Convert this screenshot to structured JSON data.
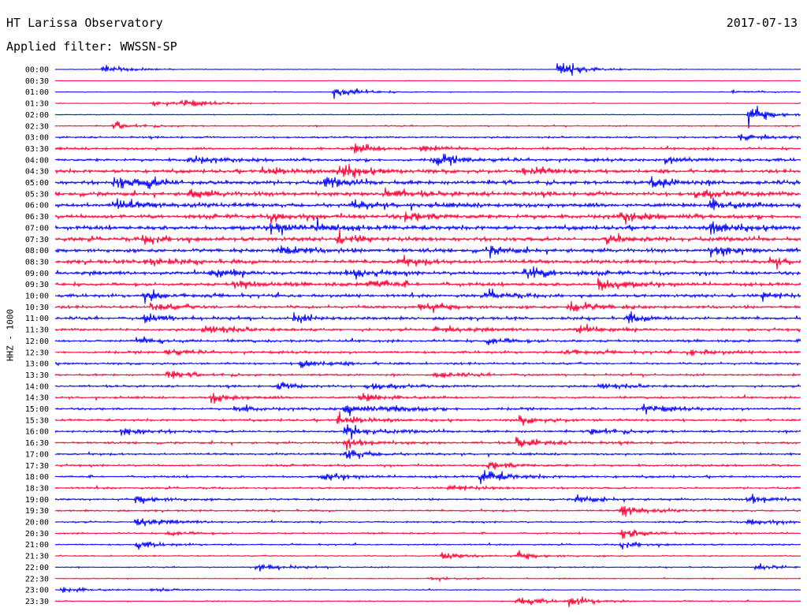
{
  "header": {
    "station": "HT Larissa Observatory",
    "date": "2017-07-13",
    "filter": "Applied filter: WWSSN-SP"
  },
  "channel_label": "HHZ - 1000",
  "colors": {
    "blue": "#0000ff",
    "red": "#ff0033"
  },
  "chart_data": {
    "type": "line",
    "title": "HT Larissa Observatory",
    "subtitle": "Applied filter: WWSSN-SP",
    "date": "2017-07-13",
    "ylabel": "HHZ - 1000",
    "row_labels": [
      "00:00",
      "00:30",
      "01:00",
      "01:30",
      "02:00",
      "02:30",
      "03:00",
      "03:30",
      "04:00",
      "04:30",
      "05:00",
      "05:30",
      "06:00",
      "06:30",
      "07:00",
      "07:30",
      "08:00",
      "08:30",
      "09:00",
      "09:30",
      "10:00",
      "10:30",
      "11:00",
      "11:30",
      "12:00",
      "12:30",
      "13:00",
      "13:30",
      "14:00",
      "14:30",
      "15:00",
      "15:30",
      "16:00",
      "16:30",
      "17:00",
      "17:30",
      "18:00",
      "18:30",
      "19:00",
      "19:30",
      "20:00",
      "20:30",
      "21:00",
      "21:30",
      "22:00",
      "22:30",
      "23:00",
      "23:30"
    ],
    "row_colors": [
      "blue",
      "red"
    ],
    "row_minutes": 30,
    "noise": [
      0.08,
      0.07,
      0.08,
      0.08,
      0.12,
      0.18,
      0.26,
      0.34,
      0.42,
      0.5,
      0.56,
      0.6,
      0.62,
      0.62,
      0.6,
      0.58,
      0.56,
      0.54,
      0.5,
      0.48,
      0.44,
      0.42,
      0.4,
      0.38,
      0.36,
      0.34,
      0.32,
      0.3,
      0.3,
      0.3,
      0.32,
      0.32,
      0.32,
      0.32,
      0.3,
      0.3,
      0.3,
      0.28,
      0.28,
      0.26,
      0.24,
      0.22,
      0.2,
      0.18,
      0.16,
      0.15,
      0.14,
      0.14
    ],
    "events": [
      {
        "row": 0,
        "t": 0.065,
        "amp": 1.0
      },
      {
        "row": 0,
        "t": 0.675,
        "amp": 1.8
      },
      {
        "row": 2,
        "t": 0.375,
        "amp": 1.6
      },
      {
        "row": 2,
        "t": 0.91,
        "amp": 0.6
      },
      {
        "row": 3,
        "t": 0.13,
        "amp": 0.7
      },
      {
        "row": 3,
        "t": 0.17,
        "amp": 0.9
      },
      {
        "row": 4,
        "t": 0.93,
        "amp": 2.0
      },
      {
        "row": 5,
        "t": 0.08,
        "amp": 0.8
      },
      {
        "row": 6,
        "t": 0.92,
        "amp": 1.2
      },
      {
        "row": 7,
        "t": 0.4,
        "amp": 1.3
      },
      {
        "row": 7,
        "t": 0.49,
        "amp": 0.9
      },
      {
        "row": 8,
        "t": 0.18,
        "amp": 1.0
      },
      {
        "row": 8,
        "t": 0.51,
        "amp": 1.3
      },
      {
        "row": 8,
        "t": 0.82,
        "amp": 0.8
      },
      {
        "row": 9,
        "t": 0.28,
        "amp": 1.2
      },
      {
        "row": 9,
        "t": 0.38,
        "amp": 1.8
      },
      {
        "row": 9,
        "t": 0.63,
        "amp": 1.4
      },
      {
        "row": 10,
        "t": 0.08,
        "amp": 1.5
      },
      {
        "row": 10,
        "t": 0.12,
        "amp": 1.0
      },
      {
        "row": 10,
        "t": 0.36,
        "amp": 1.0
      },
      {
        "row": 10,
        "t": 0.8,
        "amp": 1.3
      },
      {
        "row": 11,
        "t": 0.18,
        "amp": 1.0
      },
      {
        "row": 11,
        "t": 0.44,
        "amp": 1.2
      },
      {
        "row": 11,
        "t": 0.86,
        "amp": 1.0
      },
      {
        "row": 12,
        "t": 0.08,
        "amp": 1.3
      },
      {
        "row": 12,
        "t": 0.4,
        "amp": 1.0
      },
      {
        "row": 12,
        "t": 0.88,
        "amp": 1.2
      },
      {
        "row": 12,
        "t": 1.0,
        "amp": 1.5
      },
      {
        "row": 13,
        "t": 0.29,
        "amp": 0.9
      },
      {
        "row": 13,
        "t": 0.47,
        "amp": 1.0
      },
      {
        "row": 13,
        "t": 0.76,
        "amp": 1.0
      },
      {
        "row": 14,
        "t": 0.29,
        "amp": 1.4
      },
      {
        "row": 14,
        "t": 0.35,
        "amp": 1.0
      },
      {
        "row": 14,
        "t": 0.88,
        "amp": 1.6
      },
      {
        "row": 15,
        "t": 0.12,
        "amp": 1.1
      },
      {
        "row": 15,
        "t": 0.38,
        "amp": 1.1
      },
      {
        "row": 15,
        "t": 0.74,
        "amp": 1.2
      },
      {
        "row": 16,
        "t": 0.3,
        "amp": 1.5
      },
      {
        "row": 16,
        "t": 0.58,
        "amp": 1.0
      },
      {
        "row": 16,
        "t": 0.88,
        "amp": 1.4
      },
      {
        "row": 17,
        "t": 0.12,
        "amp": 1.0
      },
      {
        "row": 17,
        "t": 0.46,
        "amp": 1.0
      },
      {
        "row": 17,
        "t": 0.96,
        "amp": 1.0
      },
      {
        "row": 18,
        "t": 0.21,
        "amp": 1.2
      },
      {
        "row": 18,
        "t": 0.39,
        "amp": 1.3
      },
      {
        "row": 18,
        "t": 0.63,
        "amp": 2.0
      },
      {
        "row": 19,
        "t": 0.24,
        "amp": 1.1
      },
      {
        "row": 19,
        "t": 0.42,
        "amp": 1.4
      },
      {
        "row": 19,
        "t": 0.73,
        "amp": 1.6
      },
      {
        "row": 20,
        "t": 0.12,
        "amp": 1.2
      },
      {
        "row": 20,
        "t": 0.58,
        "amp": 1.0
      },
      {
        "row": 20,
        "t": 0.95,
        "amp": 1.0
      },
      {
        "row": 21,
        "t": 0.13,
        "amp": 1.0
      },
      {
        "row": 21,
        "t": 0.49,
        "amp": 1.2
      },
      {
        "row": 21,
        "t": 0.69,
        "amp": 1.6
      },
      {
        "row": 22,
        "t": 0.12,
        "amp": 1.1
      },
      {
        "row": 22,
        "t": 0.32,
        "amp": 0.9
      },
      {
        "row": 22,
        "t": 0.77,
        "amp": 1.0
      },
      {
        "row": 23,
        "t": 0.2,
        "amp": 1.4
      },
      {
        "row": 23,
        "t": 0.51,
        "amp": 1.0
      },
      {
        "row": 23,
        "t": 0.7,
        "amp": 1.0
      },
      {
        "row": 24,
        "t": 0.11,
        "amp": 0.9
      },
      {
        "row": 24,
        "t": 0.58,
        "amp": 0.9
      },
      {
        "row": 25,
        "t": 0.15,
        "amp": 0.8
      },
      {
        "row": 25,
        "t": 0.68,
        "amp": 0.9
      },
      {
        "row": 25,
        "t": 0.85,
        "amp": 0.8
      },
      {
        "row": 26,
        "t": 0.33,
        "amp": 1.0
      },
      {
        "row": 27,
        "t": 0.15,
        "amp": 1.0
      },
      {
        "row": 27,
        "t": 0.51,
        "amp": 0.8
      },
      {
        "row": 28,
        "t": 0.3,
        "amp": 0.9
      },
      {
        "row": 28,
        "t": 0.42,
        "amp": 1.0
      },
      {
        "row": 28,
        "t": 0.73,
        "amp": 0.9
      },
      {
        "row": 29,
        "t": 0.21,
        "amp": 1.2
      },
      {
        "row": 29,
        "t": 0.41,
        "amp": 1.2
      },
      {
        "row": 30,
        "t": 0.24,
        "amp": 0.9
      },
      {
        "row": 30,
        "t": 0.39,
        "amp": 1.4
      },
      {
        "row": 30,
        "t": 0.45,
        "amp": 1.0
      },
      {
        "row": 30,
        "t": 0.79,
        "amp": 1.1
      },
      {
        "row": 31,
        "t": 0.38,
        "amp": 1.5
      },
      {
        "row": 31,
        "t": 0.62,
        "amp": 1.0
      },
      {
        "row": 32,
        "t": 0.09,
        "amp": 1.2
      },
      {
        "row": 32,
        "t": 0.39,
        "amp": 1.6
      },
      {
        "row": 32,
        "t": 0.72,
        "amp": 1.0
      },
      {
        "row": 33,
        "t": 0.39,
        "amp": 1.3
      },
      {
        "row": 33,
        "t": 0.62,
        "amp": 1.3
      },
      {
        "row": 34,
        "t": 0.39,
        "amp": 1.4
      },
      {
        "row": 35,
        "t": 0.58,
        "amp": 1.0
      },
      {
        "row": 36,
        "t": 0.36,
        "amp": 0.9
      },
      {
        "row": 36,
        "t": 0.57,
        "amp": 1.8
      },
      {
        "row": 37,
        "t": 0.53,
        "amp": 0.9
      },
      {
        "row": 38,
        "t": 0.11,
        "amp": 1.1
      },
      {
        "row": 38,
        "t": 0.7,
        "amp": 1.0
      },
      {
        "row": 38,
        "t": 0.93,
        "amp": 1.3
      },
      {
        "row": 39,
        "t": 0.76,
        "amp": 1.5
      },
      {
        "row": 40,
        "t": 0.11,
        "amp": 1.3
      },
      {
        "row": 40,
        "t": 0.93,
        "amp": 1.0
      },
      {
        "row": 41,
        "t": 0.15,
        "amp": 0.6
      },
      {
        "row": 41,
        "t": 0.76,
        "amp": 1.4
      },
      {
        "row": 42,
        "t": 0.11,
        "amp": 0.8
      },
      {
        "row": 42,
        "t": 0.76,
        "amp": 0.9
      },
      {
        "row": 43,
        "t": 0.52,
        "amp": 0.8
      },
      {
        "row": 43,
        "t": 0.62,
        "amp": 0.8
      },
      {
        "row": 44,
        "t": 0.27,
        "amp": 1.3
      },
      {
        "row": 44,
        "t": 0.94,
        "amp": 1.0
      },
      {
        "row": 45,
        "t": 0.5,
        "amp": 0.5
      },
      {
        "row": 46,
        "t": 0.01,
        "amp": 0.8
      },
      {
        "row": 46,
        "t": 0.13,
        "amp": 0.6
      },
      {
        "row": 47,
        "t": 0.62,
        "amp": 1.2
      },
      {
        "row": 47,
        "t": 0.69,
        "amp": 1.0
      }
    ]
  }
}
